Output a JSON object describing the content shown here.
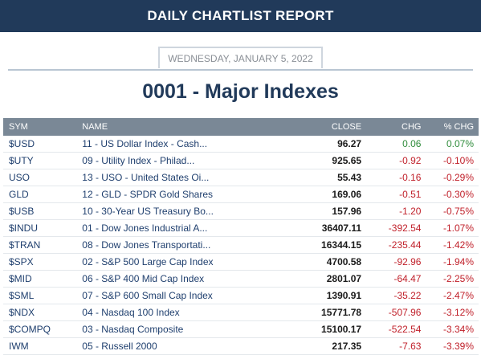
{
  "header": {
    "title": "DAILY CHARTLIST REPORT"
  },
  "report": {
    "date": "WEDNESDAY, JANUARY 5, 2022",
    "chartlist_title": "0001 - Major Indexes"
  },
  "table": {
    "columns": {
      "sym": "SYM",
      "name": "NAME",
      "close": "CLOSE",
      "chg": "CHG",
      "pct_chg": "% CHG"
    },
    "rows": [
      {
        "sym": "$USD",
        "name": "11 - US Dollar Index - Cash...",
        "close": "96.27",
        "chg": "0.06",
        "pct_chg": "0.07%",
        "direction": "up"
      },
      {
        "sym": "$UTY",
        "name": "09 - Utility Index - Philad...",
        "close": "925.65",
        "chg": "-0.92",
        "pct_chg": "-0.10%",
        "direction": "down"
      },
      {
        "sym": "USO",
        "name": "13 - USO - United States Oi...",
        "close": "55.43",
        "chg": "-0.16",
        "pct_chg": "-0.29%",
        "direction": "down"
      },
      {
        "sym": "GLD",
        "name": "12 - GLD - SPDR Gold Shares",
        "close": "169.06",
        "chg": "-0.51",
        "pct_chg": "-0.30%",
        "direction": "down"
      },
      {
        "sym": "$USB",
        "name": "10 - 30-Year US Treasury Bo...",
        "close": "157.96",
        "chg": "-1.20",
        "pct_chg": "-0.75%",
        "direction": "down"
      },
      {
        "sym": "$INDU",
        "name": "01 - Dow Jones Industrial A...",
        "close": "36407.11",
        "chg": "-392.54",
        "pct_chg": "-1.07%",
        "direction": "down"
      },
      {
        "sym": "$TRAN",
        "name": "08 - Dow Jones Transportati...",
        "close": "16344.15",
        "chg": "-235.44",
        "pct_chg": "-1.42%",
        "direction": "down"
      },
      {
        "sym": "$SPX",
        "name": "02 - S&P 500 Large Cap Index",
        "close": "4700.58",
        "chg": "-92.96",
        "pct_chg": "-1.94%",
        "direction": "down"
      },
      {
        "sym": "$MID",
        "name": "06 - S&P 400 Mid Cap Index",
        "close": "2801.07",
        "chg": "-64.47",
        "pct_chg": "-2.25%",
        "direction": "down"
      },
      {
        "sym": "$SML",
        "name": "07 - S&P 600 Small Cap Index",
        "close": "1390.91",
        "chg": "-35.22",
        "pct_chg": "-2.47%",
        "direction": "down"
      },
      {
        "sym": "$NDX",
        "name": "04 - Nasdaq 100 Index",
        "close": "15771.78",
        "chg": "-507.96",
        "pct_chg": "-3.12%",
        "direction": "down"
      },
      {
        "sym": "$COMPQ",
        "name": "03 - Nasdaq Composite",
        "close": "15100.17",
        "chg": "-522.54",
        "pct_chg": "-3.34%",
        "direction": "down"
      },
      {
        "sym": "IWM",
        "name": "05 - Russell 2000",
        "close": "217.35",
        "chg": "-7.63",
        "pct_chg": "-3.39%",
        "direction": "down"
      }
    ]
  },
  "colors": {
    "header_bg": "#213a5a",
    "table_header_bg": "#7a8896",
    "positive": "#2e8b3a",
    "negative": "#c0202a",
    "link": "#1f3f6e"
  }
}
